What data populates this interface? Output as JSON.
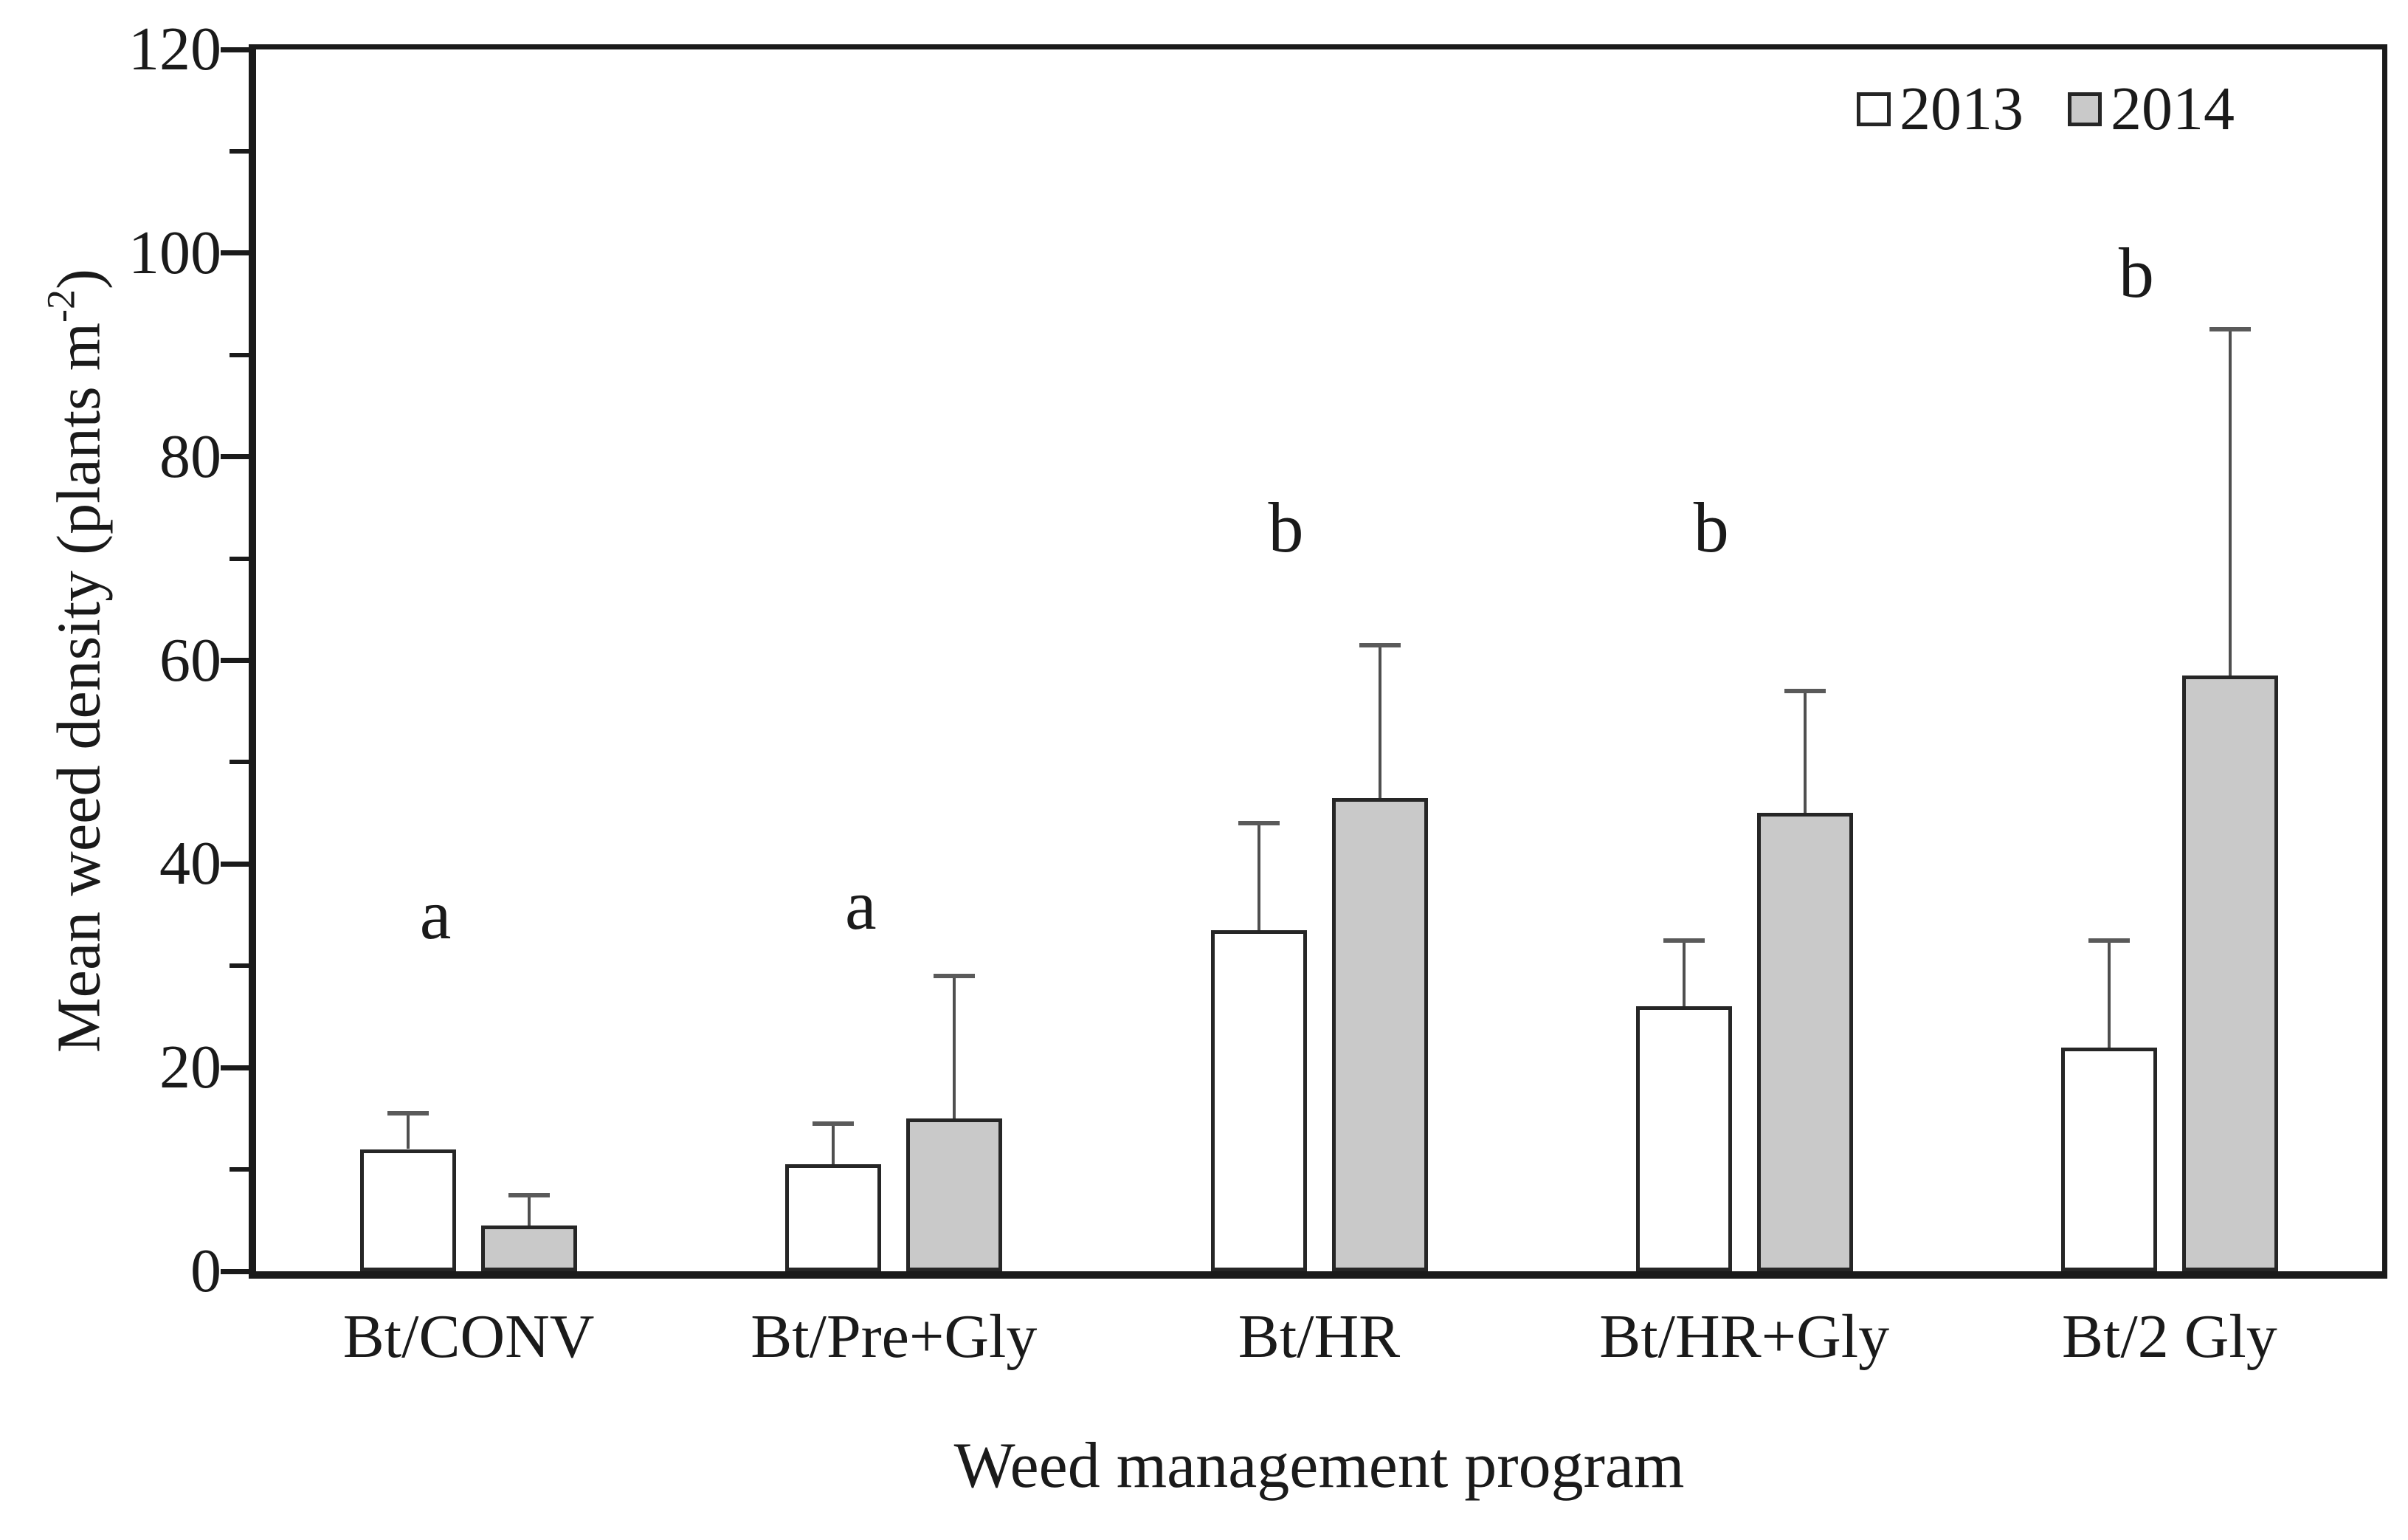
{
  "figure": {
    "ylabel_parts": {
      "main": "Mean weed density (plants m",
      "sup": "-2",
      "end": ")"
    }
  },
  "chart_data": {
    "type": "bar",
    "title": "",
    "xlabel": "Weed management program",
    "ylabel": "Mean weed density (plants m^-2)",
    "ylim": [
      0,
      120
    ],
    "ytick_step": 20,
    "yminor_step": 10,
    "grid": false,
    "legend_position": "top-right-inside",
    "categories": [
      "Bt/CONV",
      "Bt/Pre+Gly",
      "Bt/HR",
      "Bt/HR+Gly",
      "Bt/2 Gly"
    ],
    "series": [
      {
        "name": "2013",
        "fill": "#ffffff",
        "values": [
          12,
          10.5,
          33.5,
          26,
          22
        ],
        "errors_up": [
          3.5,
          4,
          10.5,
          6.5,
          10.5
        ]
      },
      {
        "name": "2014",
        "fill": "#c9c9c9",
        "values": [
          4.5,
          15,
          46.5,
          45,
          58.5
        ],
        "errors_up": [
          3,
          14,
          15,
          12,
          34
        ]
      }
    ],
    "significance_letters": [
      {
        "label": "a",
        "y": 35
      },
      {
        "label": "a",
        "y": 36
      },
      {
        "label": "b",
        "y": 73
      },
      {
        "label": "b",
        "y": 73
      },
      {
        "label": "b",
        "y": 98
      }
    ],
    "colors": {
      "axis": "#1a1a1a",
      "bar_border": "#262626",
      "error_bar": "#4f4f4f",
      "bar_2013": "#ffffff",
      "bar_2014": "#c9c9c9"
    }
  }
}
